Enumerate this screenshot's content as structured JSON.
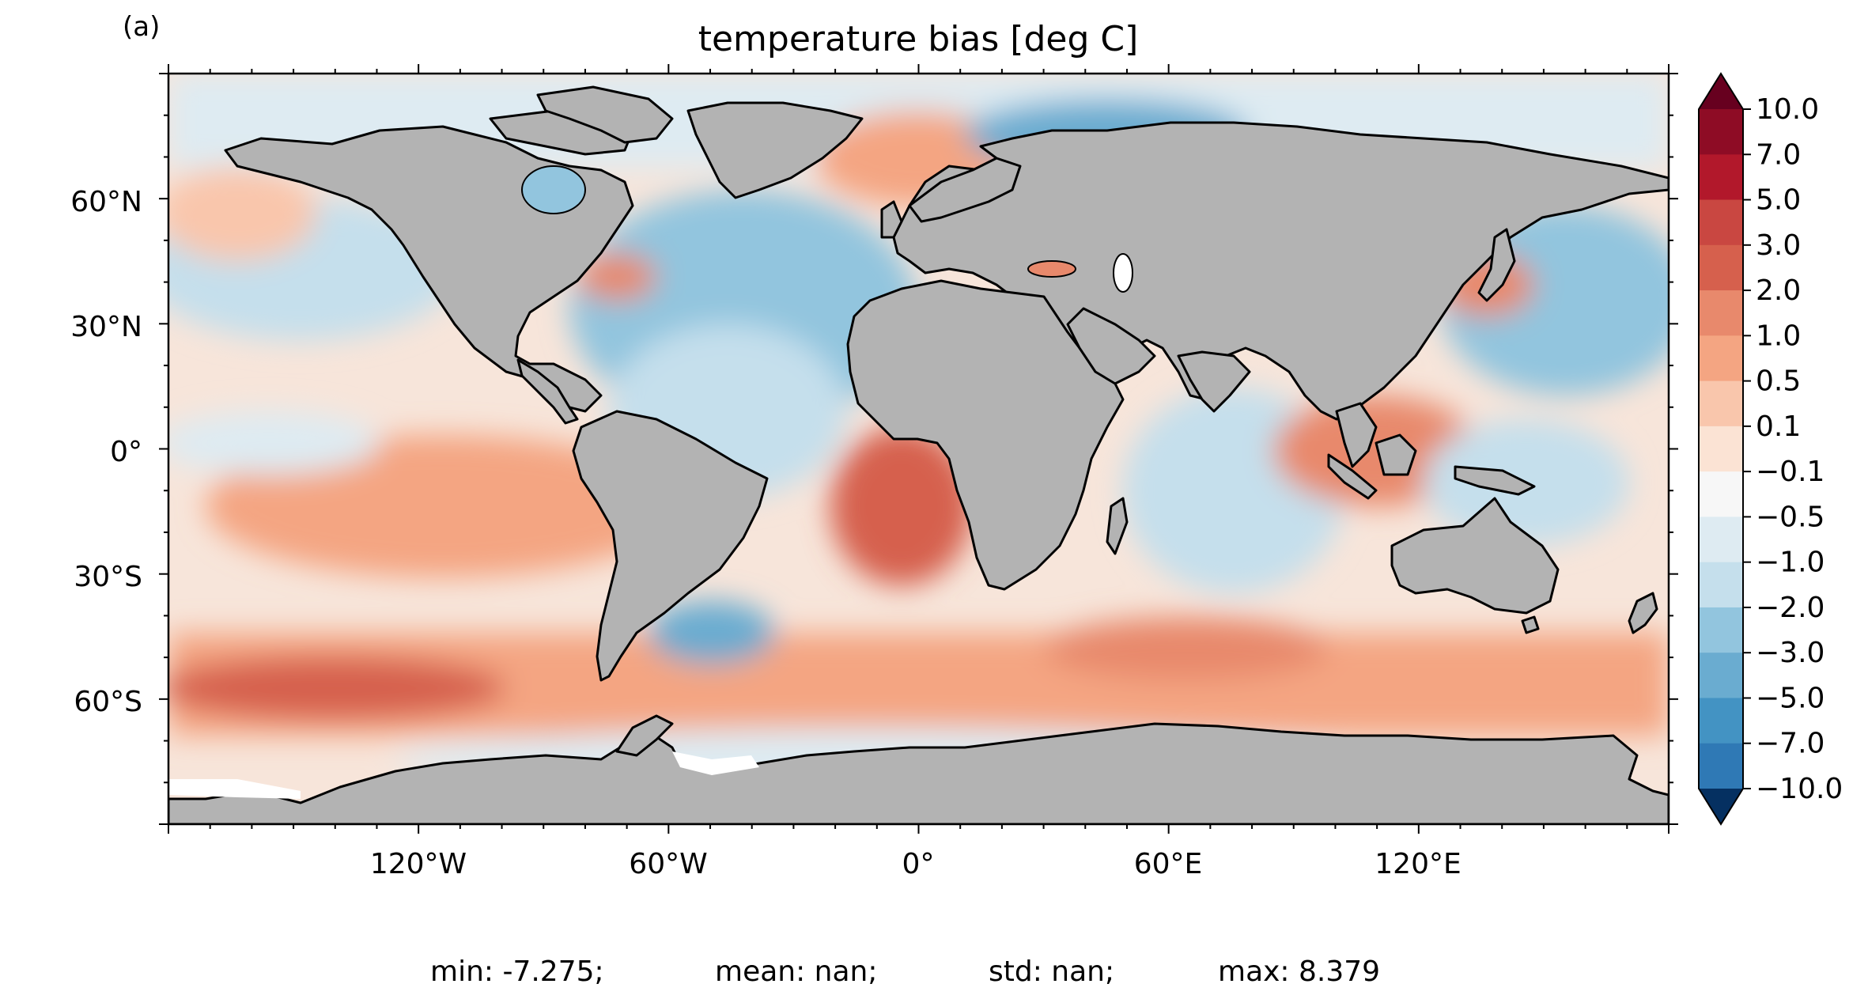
{
  "panel_label": "(a)",
  "title": "temperature bias [deg C]",
  "colorbar": {
    "tick_labels": [
      "10.0",
      "7.0",
      "5.0",
      "3.0",
      "2.0",
      "1.0",
      "0.5",
      "0.1",
      "−0.1",
      "−0.5",
      "−1.0",
      "−2.0",
      "−3.0",
      "−5.0",
      "−7.0",
      "−10.0"
    ],
    "colors": [
      "#67001f",
      "#8e0c25",
      "#b2182b",
      "#c94741",
      "#d6604d",
      "#e8896c",
      "#f4a582",
      "#f9c6ac",
      "#fbe3d4",
      "#f7f7f7",
      "#deebf2",
      "#c5dfec",
      "#92c5de",
      "#6aacd0",
      "#4393c3",
      "#2f79b5",
      "#2166ac",
      "#134c87",
      "#053061"
    ],
    "extend": "both"
  },
  "lat_ticks": [
    "60°N",
    "30°N",
    "0°",
    "30°S",
    "60°S"
  ],
  "lon_ticks": [
    "120°W",
    "60°W",
    "0°",
    "60°E",
    "120°E"
  ],
  "stats": {
    "min": "min: -7.275;",
    "mean": "mean: nan;",
    "std": "std: nan;",
    "max": "max: 8.379"
  },
  "colors": {
    "land": "#b3b3b3",
    "ocean_base": "#f7e5da"
  }
}
